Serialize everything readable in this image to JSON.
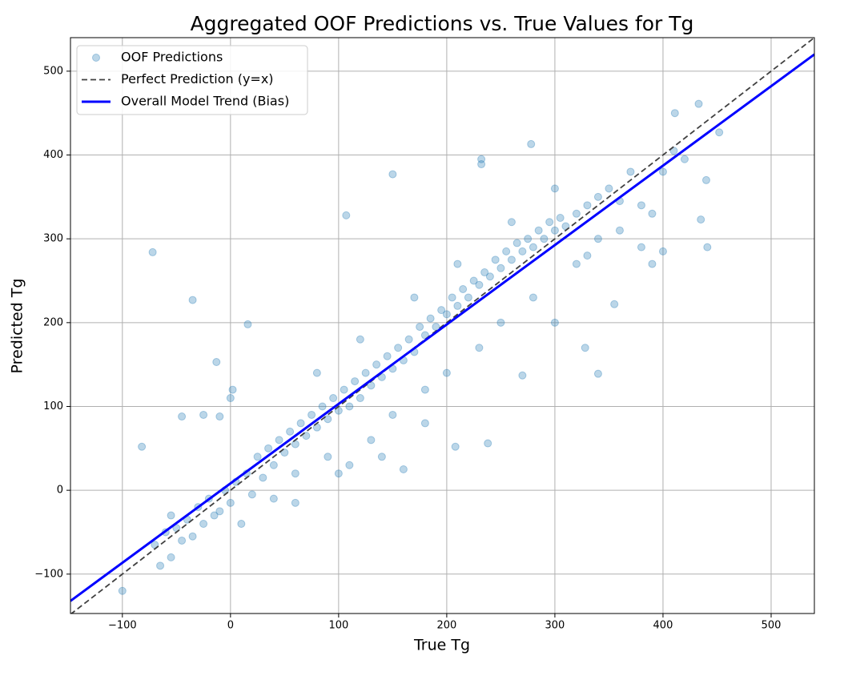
{
  "chart_data": {
    "type": "scatter",
    "title": "Aggregated OOF Predictions vs. True Values for Tg",
    "x_label": "True Tg",
    "y_label": "Predicted Tg",
    "xlim": [
      -148,
      540
    ],
    "ylim": [
      -147,
      540
    ],
    "xticks": [
      {
        "value": -100,
        "label": "−100"
      },
      0,
      100,
      200,
      300,
      400,
      500
    ],
    "yticks": [
      {
        "value": -100,
        "label": "−100"
      },
      0,
      100,
      200,
      300,
      400,
      500
    ],
    "grid": true,
    "legend": "upper left",
    "series": [
      {
        "name": "OOF Predictions",
        "type": "scatter",
        "color": "#1f77b4",
        "x": [
          -70,
          -60,
          -55,
          -50,
          -45,
          -40,
          -35,
          -30,
          -25,
          -20,
          -15,
          -10,
          -5,
          0,
          5,
          0,
          -25,
          -45,
          -10,
          2,
          10,
          15,
          20,
          25,
          30,
          35,
          40,
          45,
          50,
          55,
          60,
          65,
          70,
          75,
          80,
          85,
          90,
          95,
          100,
          105,
          110,
          115,
          120,
          125,
          130,
          135,
          140,
          145,
          150,
          155,
          160,
          165,
          170,
          175,
          180,
          185,
          190,
          195,
          200,
          205,
          210,
          215,
          220,
          225,
          230,
          235,
          240,
          245,
          250,
          255,
          260,
          265,
          270,
          275,
          280,
          285,
          290,
          295,
          300,
          305,
          310,
          320,
          330,
          340,
          350,
          360,
          370,
          380,
          390,
          400,
          410,
          420,
          60,
          80,
          90,
          120,
          130,
          150,
          170,
          180,
          200,
          210,
          230,
          250,
          260,
          280,
          300,
          320,
          340,
          360,
          380,
          -55,
          -65,
          40,
          60,
          100,
          110,
          140,
          160,
          180,
          270,
          300,
          330,
          390,
          400,
          435,
          440,
          -72,
          -35,
          -100,
          -82,
          278,
          150,
          340,
          238,
          208,
          441,
          433,
          411,
          452,
          232,
          232,
          107,
          355,
          328,
          16,
          -13
        ],
        "values": [
          -65,
          -50,
          -30,
          -45,
          -60,
          -35,
          -55,
          -20,
          -40,
          -10,
          -30,
          -25,
          0,
          -15,
          10,
          110,
          90,
          88,
          88,
          120,
          -40,
          20,
          -5,
          40,
          15,
          50,
          30,
          60,
          45,
          70,
          55,
          80,
          65,
          90,
          75,
          100,
          85,
          110,
          95,
          120,
          100,
          130,
          110,
          140,
          125,
          150,
          135,
          160,
          145,
          170,
          155,
          180,
          165,
          195,
          185,
          205,
          195,
          215,
          210,
          230,
          220,
          240,
          230,
          250,
          245,
          260,
          255,
          275,
          265,
          285,
          275,
          295,
          285,
          300,
          290,
          310,
          300,
          320,
          310,
          325,
          315,
          330,
          340,
          350,
          360,
          345,
          380,
          340,
          330,
          380,
          405,
          395,
          20,
          140,
          40,
          180,
          60,
          90,
          230,
          120,
          140,
          270,
          170,
          200,
          320,
          230,
          360,
          270,
          300,
          310,
          290,
          -80,
          -90,
          -10,
          -15,
          20,
          30,
          40,
          25,
          80,
          137,
          200,
          280,
          270,
          285,
          323,
          370,
          284,
          227,
          -120,
          52,
          413,
          377,
          139,
          56,
          52,
          290,
          461,
          450,
          427,
          395,
          389,
          328,
          222,
          170,
          198,
          153
        ]
      },
      {
        "name": "Perfect Prediction (y=x)",
        "type": "line",
        "dashed": true,
        "color": "#404040",
        "x": [
          -148,
          540
        ],
        "values": [
          -148,
          540
        ]
      },
      {
        "name": "Overall Model Trend (Bias)",
        "type": "line",
        "color": "#0000ff",
        "x": [
          -148,
          540
        ],
        "values": [
          -132,
          520
        ]
      }
    ]
  }
}
